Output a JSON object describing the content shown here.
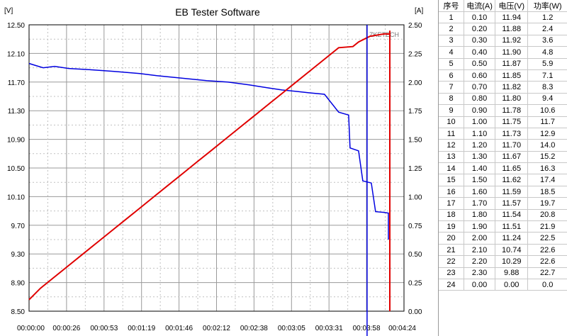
{
  "window": {
    "title": "EB Tester Software",
    "watermark": "ZKETECH"
  },
  "chart_data": {
    "type": "line",
    "title": "EB Tester Software",
    "left_unit": "[V]",
    "right_unit": "[A]",
    "x_ticks": [
      "00:00:00",
      "00:00:26",
      "00:00:53",
      "00:01:19",
      "00:01:46",
      "00:02:12",
      "00:02:38",
      "00:03:05",
      "00:03:31",
      "00:03:58",
      "00:04:24"
    ],
    "x_range_seconds": [
      0,
      264
    ],
    "left_ticks": [
      "12.50",
      "12.10",
      "11.70",
      "11.30",
      "10.90",
      "10.50",
      "10.10",
      "9.70",
      "9.30",
      "8.90",
      "8.50"
    ],
    "right_ticks": [
      "2.50",
      "2.25",
      "2.00",
      "1.75",
      "1.50",
      "1.25",
      "1.00",
      "0.75",
      "0.50",
      "0.25",
      "0.00"
    ],
    "ylim_left": [
      8.5,
      12.5
    ],
    "ylim_right": [
      0,
      2.5
    ],
    "grid": true,
    "cursor_time": "00:03:58",
    "series": [
      {
        "axis": "left",
        "color": "#0000e0",
        "points": [
          [
            0,
            11.96
          ],
          [
            5,
            11.93
          ],
          [
            10,
            11.9
          ],
          [
            18,
            11.92
          ],
          [
            28,
            11.89
          ],
          [
            45,
            11.87
          ],
          [
            60,
            11.85
          ],
          [
            78,
            11.82
          ],
          [
            90,
            11.79
          ],
          [
            105,
            11.76
          ],
          [
            125,
            11.72
          ],
          [
            140,
            11.7
          ],
          [
            155,
            11.66
          ],
          [
            168,
            11.62
          ],
          [
            178,
            11.59
          ],
          [
            188,
            11.57
          ],
          [
            197,
            11.55
          ],
          [
            208,
            11.53
          ],
          [
            218,
            11.28
          ],
          [
            225,
            11.24
          ],
          [
            226,
            10.78
          ],
          [
            232,
            10.74
          ],
          [
            235,
            10.32
          ],
          [
            241,
            10.29
          ],
          [
            244,
            9.89
          ],
          [
            250,
            9.88
          ],
          [
            253,
            9.87
          ],
          [
            253,
            9.5
          ]
        ]
      },
      {
        "axis": "right",
        "color": "#e00000",
        "points": [
          [
            0,
            0.1
          ],
          [
            8,
            0.2
          ],
          [
            18,
            0.3
          ],
          [
            28,
            0.4
          ],
          [
            38,
            0.5
          ],
          [
            48,
            0.6
          ],
          [
            58,
            0.7
          ],
          [
            68,
            0.8
          ],
          [
            78,
            0.9
          ],
          [
            88,
            1.0
          ],
          [
            98,
            1.1
          ],
          [
            108,
            1.2
          ],
          [
            118,
            1.3
          ],
          [
            128,
            1.4
          ],
          [
            138,
            1.5
          ],
          [
            148,
            1.6
          ],
          [
            158,
            1.7
          ],
          [
            168,
            1.8
          ],
          [
            178,
            1.9
          ],
          [
            188,
            2.0
          ],
          [
            198,
            2.1
          ],
          [
            208,
            2.2
          ],
          [
            218,
            2.3
          ],
          [
            228,
            2.31
          ],
          [
            232,
            2.35
          ],
          [
            240,
            2.4
          ],
          [
            250,
            2.42
          ],
          [
            254,
            2.42
          ],
          [
            254,
            2.45
          ],
          [
            254,
            0.0
          ]
        ]
      }
    ]
  },
  "table": {
    "headers": [
      "序号",
      "电流(A)",
      "电压(V)",
      "功率(W)"
    ],
    "rows": [
      [
        "1",
        "0.10",
        "11.94",
        "1.2"
      ],
      [
        "2",
        "0.20",
        "11.88",
        "2.4"
      ],
      [
        "3",
        "0.30",
        "11.92",
        "3.6"
      ],
      [
        "4",
        "0.40",
        "11.90",
        "4.8"
      ],
      [
        "5",
        "0.50",
        "11.87",
        "5.9"
      ],
      [
        "6",
        "0.60",
        "11.85",
        "7.1"
      ],
      [
        "7",
        "0.70",
        "11.82",
        "8.3"
      ],
      [
        "8",
        "0.80",
        "11.80",
        "9.4"
      ],
      [
        "9",
        "0.90",
        "11.78",
        "10.6"
      ],
      [
        "10",
        "1.00",
        "11.75",
        "11.7"
      ],
      [
        "11",
        "1.10",
        "11.73",
        "12.9"
      ],
      [
        "12",
        "1.20",
        "11.70",
        "14.0"
      ],
      [
        "13",
        "1.30",
        "11.67",
        "15.2"
      ],
      [
        "14",
        "1.40",
        "11.65",
        "16.3"
      ],
      [
        "15",
        "1.50",
        "11.62",
        "17.4"
      ],
      [
        "16",
        "1.60",
        "11.59",
        "18.5"
      ],
      [
        "17",
        "1.70",
        "11.57",
        "19.7"
      ],
      [
        "18",
        "1.80",
        "11.54",
        "20.8"
      ],
      [
        "19",
        "1.90",
        "11.51",
        "21.9"
      ],
      [
        "20",
        "2.00",
        "11.24",
        "22.5"
      ],
      [
        "21",
        "2.10",
        "10.74",
        "22.6"
      ],
      [
        "22",
        "2.20",
        "10.29",
        "22.6"
      ],
      [
        "23",
        "2.30",
        "9.88",
        "22.7"
      ],
      [
        "24",
        "0.00",
        "0.00",
        "0.0"
      ]
    ]
  }
}
